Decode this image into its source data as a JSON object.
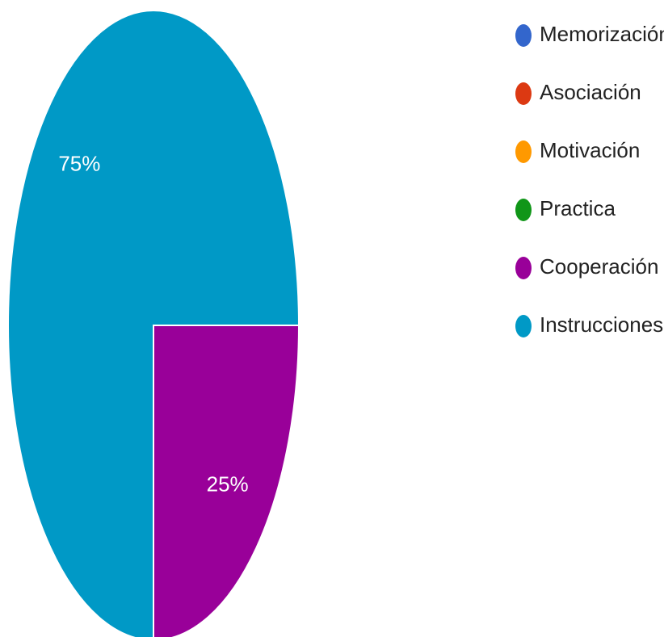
{
  "chart_data": {
    "type": "pie",
    "categories": [
      "Memorización",
      "Asociación",
      "Motivación",
      "Practica",
      "Cooperación",
      "Instrucciones"
    ],
    "values": [
      0,
      0,
      0,
      0,
      25,
      75
    ],
    "value_labels": [
      null,
      null,
      null,
      null,
      "25%",
      "75%"
    ],
    "colors": [
      "#3366cc",
      "#dc3912",
      "#ff9900",
      "#109618",
      "#990099",
      "#0099c6"
    ],
    "legend": "right"
  }
}
